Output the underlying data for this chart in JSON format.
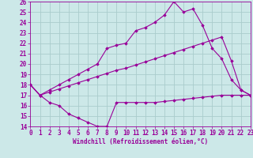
{
  "xlabel": "Windchill (Refroidissement éolien,°C)",
  "x_values": [
    0,
    1,
    2,
    3,
    4,
    5,
    6,
    7,
    8,
    9,
    10,
    11,
    12,
    13,
    14,
    15,
    16,
    17,
    18,
    19,
    20,
    21,
    22,
    23
  ],
  "line1": [
    18.0,
    17.0,
    16.3,
    16.0,
    15.2,
    14.8,
    14.4,
    14.0,
    14.0,
    16.3,
    16.3,
    16.3,
    16.3,
    16.3,
    16.4,
    16.5,
    16.6,
    16.7,
    16.8,
    16.9,
    17.0,
    17.0,
    17.0,
    17.0
  ],
  "line2": [
    18.0,
    17.0,
    17.3,
    17.6,
    17.9,
    18.2,
    18.5,
    18.8,
    19.1,
    19.4,
    19.6,
    19.9,
    20.2,
    20.5,
    20.8,
    21.1,
    21.4,
    21.7,
    22.0,
    22.3,
    22.6,
    20.3,
    17.5,
    17.0
  ],
  "line3": [
    18.0,
    17.0,
    17.5,
    18.0,
    18.5,
    19.0,
    19.5,
    20.0,
    21.5,
    21.8,
    22.0,
    23.2,
    23.5,
    24.0,
    24.7,
    26.0,
    25.0,
    25.3,
    23.7,
    21.5,
    20.5,
    18.5,
    17.5,
    17.0
  ],
  "line_color": "#990099",
  "bg_color": "#cce8e8",
  "grid_color": "#aacccc",
  "ylim": [
    14,
    26
  ],
  "xlim": [
    0,
    23
  ],
  "yticks": [
    14,
    15,
    16,
    17,
    18,
    19,
    20,
    21,
    22,
    23,
    24,
    25,
    26
  ],
  "xticks": [
    0,
    1,
    2,
    3,
    4,
    5,
    6,
    7,
    8,
    9,
    10,
    11,
    12,
    13,
    14,
    15,
    16,
    17,
    18,
    19,
    20,
    21,
    22,
    23
  ],
  "tick_fontsize": 5.5,
  "xlabel_fontsize": 5.5
}
